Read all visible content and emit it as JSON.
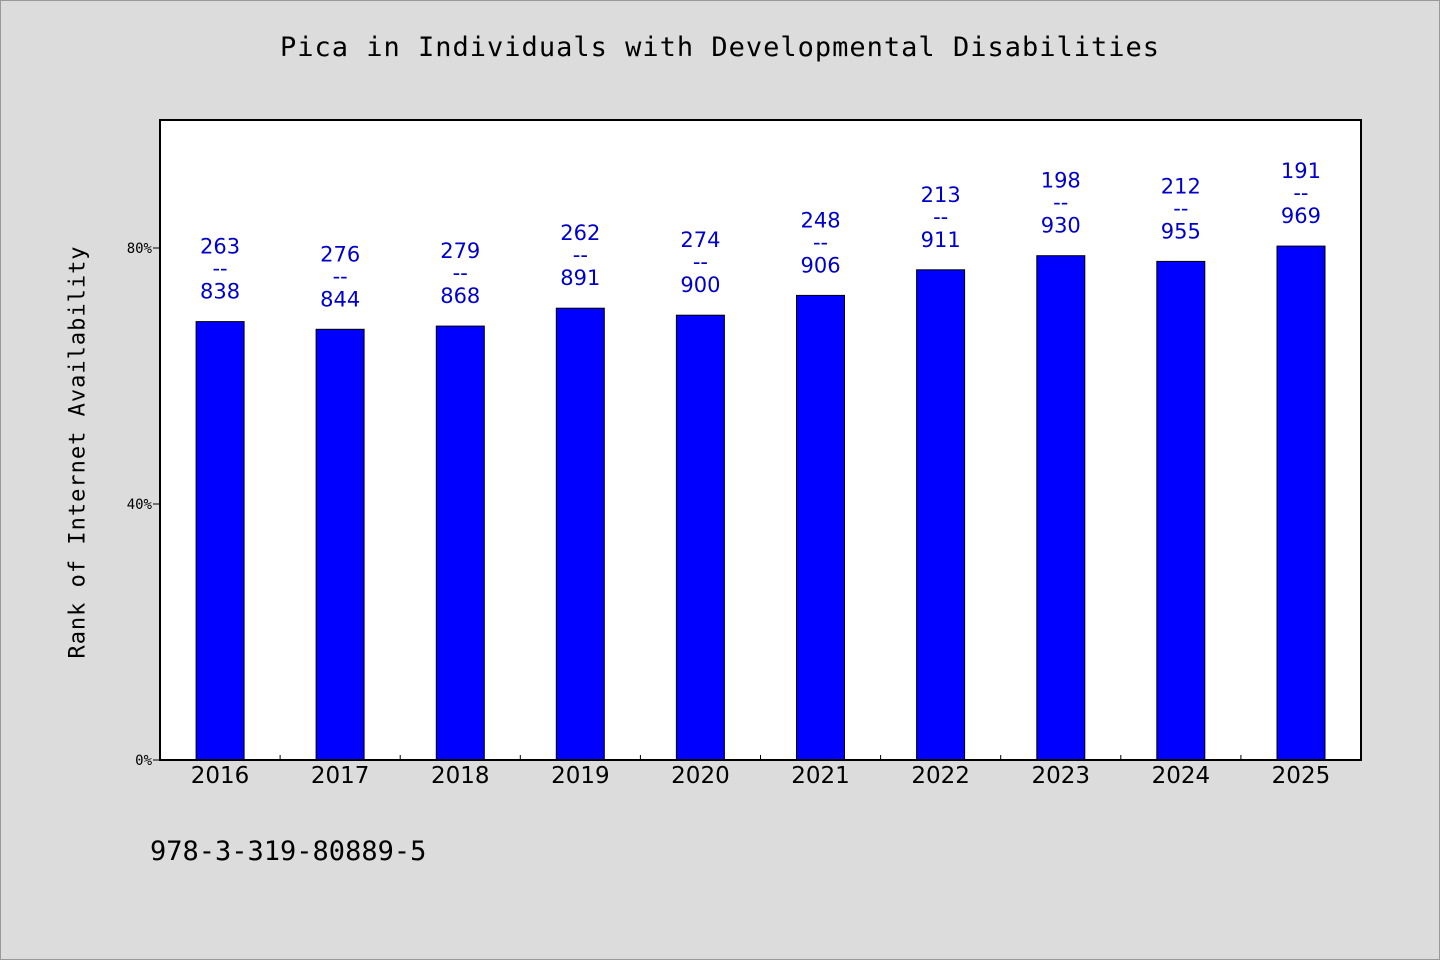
{
  "footnote": "978-3-319-80889-5",
  "chart_data": {
    "type": "bar",
    "title": "Pica in Individuals with Developmental Disabilities",
    "xlabel": "",
    "ylabel": "Rank of Internet Availability",
    "categories": [
      "2016",
      "2017",
      "2018",
      "2019",
      "2020",
      "2021",
      "2022",
      "2023",
      "2024",
      "2025"
    ],
    "values": [
      68.5,
      67.3,
      67.8,
      70.6,
      69.5,
      72.6,
      76.6,
      78.8,
      77.9,
      80.3
    ],
    "value_unit": "%",
    "point_labels": [
      [
        "263",
        "--",
        "838"
      ],
      [
        "276",
        "--",
        "844"
      ],
      [
        "279",
        "--",
        "868"
      ],
      [
        "262",
        "--",
        "891"
      ],
      [
        "274",
        "--",
        "900"
      ],
      [
        "248",
        "--",
        "906"
      ],
      [
        "213",
        "--",
        "911"
      ],
      [
        "198",
        "--",
        "930"
      ],
      [
        "212",
        "--",
        "955"
      ],
      [
        "191",
        "--",
        "969"
      ]
    ],
    "ylim": [
      0,
      100
    ],
    "yticks": [
      0,
      40,
      80
    ],
    "ytick_labels": [
      "0%",
      "40%",
      "80%"
    ],
    "grid": false,
    "legend": "none",
    "colors": {
      "bar": "#0000ff",
      "bar_edge": "#000000",
      "data_label": "#0000cc",
      "plot_bg": "#ffffff",
      "page_bg": "#dcdcdc"
    }
  }
}
